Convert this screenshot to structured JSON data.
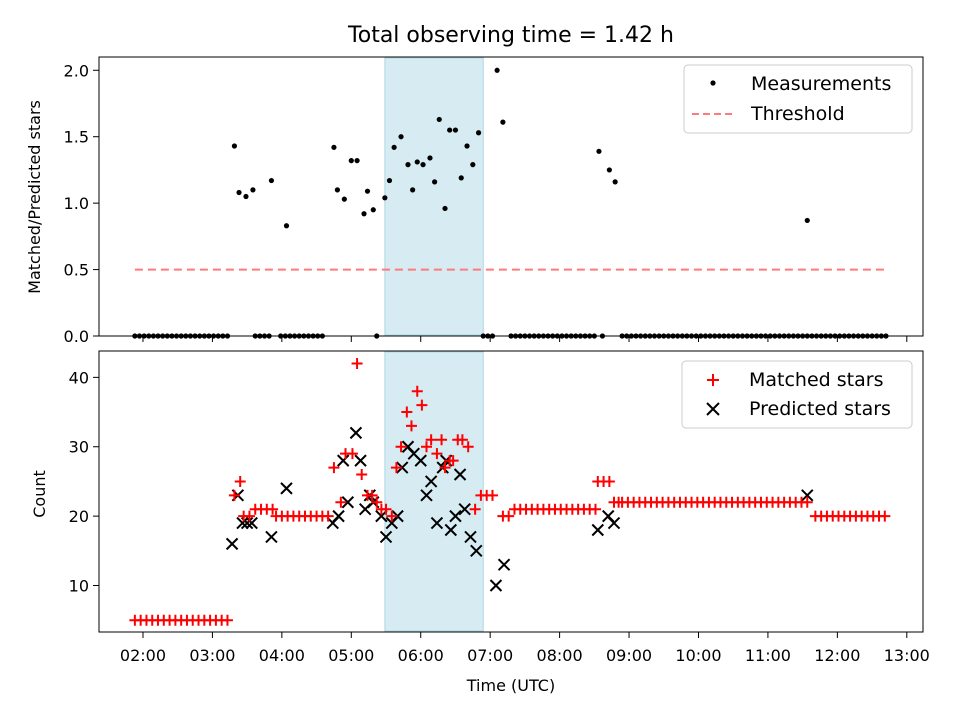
{
  "chart_data": [
    {
      "type": "scatter",
      "title": "Total observing time = 1.42 h",
      "ylabel": "Matched/Predicted stars",
      "xlabel": "",
      "xlim": [
        "01:22",
        "13:14"
      ],
      "ylim": [
        0,
        2.1
      ],
      "yticks": [
        "0.0",
        "0.5",
        "1.0",
        "1.5",
        "2.0"
      ],
      "grid": false,
      "legend_position": "top-right",
      "shaded_interval": [
        "05:29",
        "06:54"
      ],
      "series": [
        {
          "name": "Measurements",
          "color": "#000000",
          "marker": "dot",
          "points": [
            [
              "03:19",
              1.43
            ],
            [
              "03:23",
              1.08
            ],
            [
              "03:29",
              1.05
            ],
            [
              "03:35",
              1.1
            ],
            [
              "03:51",
              1.17
            ],
            [
              "04:04",
              0.83
            ],
            [
              "04:45",
              1.42
            ],
            [
              "04:48",
              1.1
            ],
            [
              "04:54",
              1.03
            ],
            [
              "05:00",
              1.32
            ],
            [
              "05:05",
              1.32
            ],
            [
              "05:11",
              0.92
            ],
            [
              "05:14",
              1.09
            ],
            [
              "05:19",
              0.95
            ],
            [
              "05:29",
              1.04
            ],
            [
              "05:33",
              1.17
            ],
            [
              "05:37",
              1.42
            ],
            [
              "05:43",
              1.5
            ],
            [
              "05:49",
              1.29
            ],
            [
              "05:53",
              1.1
            ],
            [
              "05:57",
              1.31
            ],
            [
              "06:02",
              1.29
            ],
            [
              "06:08",
              1.34
            ],
            [
              "06:12",
              1.16
            ],
            [
              "06:16",
              1.63
            ],
            [
              "06:21",
              0.96
            ],
            [
              "06:25",
              1.55
            ],
            [
              "06:30",
              1.55
            ],
            [
              "06:35",
              1.19
            ],
            [
              "06:40",
              1.43
            ],
            [
              "06:45",
              1.29
            ],
            [
              "06:50",
              1.53
            ],
            [
              "07:06",
              2.0
            ],
            [
              "07:11",
              1.61
            ],
            [
              "08:34",
              1.39
            ],
            [
              "08:43",
              1.25
            ],
            [
              "08:48",
              1.16
            ],
            [
              "11:34",
              0.87
            ]
          ],
          "zero_runs": [
            [
              "01:53",
              "03:13"
            ],
            [
              "03:37",
              "03:52"
            ],
            [
              "03:59",
              "04:38"
            ],
            [
              "05:22",
              "05:24"
            ],
            [
              "06:54",
              "07:02"
            ],
            [
              "07:18",
              "08:33"
            ],
            [
              "08:37",
              "08:39"
            ],
            [
              "08:54",
              "12:43"
            ]
          ]
        },
        {
          "name": "Threshold",
          "color": "#ff7a7a",
          "style": "dashed",
          "x": [
            "01:53",
            "12:43"
          ],
          "y": [
            0.5,
            0.5
          ]
        }
      ]
    },
    {
      "type": "scatter",
      "title": "",
      "ylabel": "Count",
      "xlabel": "Time (UTC)",
      "xlim": [
        "01:22",
        "13:14"
      ],
      "ylim": [
        3.3,
        43.8
      ],
      "yticks": [
        "10",
        "20",
        "30",
        "40"
      ],
      "xticks": [
        "02:00",
        "03:00",
        "04:00",
        "05:00",
        "06:00",
        "07:00",
        "08:00",
        "09:00",
        "10:00",
        "11:00",
        "12:00",
        "13:00"
      ],
      "grid": false,
      "legend_position": "top-right",
      "shaded_interval": [
        "05:29",
        "06:54"
      ],
      "series": [
        {
          "name": "Matched stars",
          "color": "#ff0000",
          "marker": "plus",
          "runs": [
            {
              "from": "01:53",
              "to": "03:13",
              "step": 5,
              "y": 5
            },
            {
              "from": "03:27",
              "to": "03:32",
              "step": 5,
              "y": 20
            },
            {
              "from": "03:37",
              "to": "03:52",
              "step": 5,
              "y": 21
            },
            {
              "from": "03:55",
              "to": "04:40",
              "step": 5,
              "y": 20
            },
            {
              "from": "07:11",
              "to": "07:16",
              "step": 5,
              "y": 20
            },
            {
              "from": "07:21",
              "to": "08:31",
              "step": 5,
              "y": 21
            },
            {
              "from": "08:54",
              "to": "11:29",
              "step": 5,
              "y": 22
            },
            {
              "from": "11:41",
              "to": "12:41",
              "step": 5,
              "y": 20
            }
          ],
          "points": [
            [
              "03:19",
              23
            ],
            [
              "03:24",
              25
            ],
            [
              "04:45",
              27
            ],
            [
              "04:51",
              22
            ],
            [
              "04:55",
              29
            ],
            [
              "05:01",
              29
            ],
            [
              "05:05",
              42
            ],
            [
              "05:09",
              26
            ],
            [
              "05:14",
              23
            ],
            [
              "05:18",
              23
            ],
            [
              "05:22",
              22
            ],
            [
              "05:26",
              21
            ],
            [
              "05:30",
              21
            ],
            [
              "05:35",
              20
            ],
            [
              "05:39",
              27
            ],
            [
              "05:43",
              30
            ],
            [
              "05:48",
              35
            ],
            [
              "05:52",
              33
            ],
            [
              "05:57",
              38
            ],
            [
              "06:01",
              36
            ],
            [
              "06:05",
              30
            ],
            [
              "06:09",
              31
            ],
            [
              "06:14",
              29
            ],
            [
              "06:18",
              31
            ],
            [
              "06:21",
              27
            ],
            [
              "06:25",
              28
            ],
            [
              "06:28",
              28
            ],
            [
              "06:32",
              31
            ],
            [
              "06:36",
              31
            ],
            [
              "06:41",
              30
            ],
            [
              "06:47",
              21
            ],
            [
              "06:52",
              23
            ],
            [
              "06:57",
              23
            ],
            [
              "07:02",
              23
            ],
            [
              "08:33",
              25
            ],
            [
              "08:38",
              25
            ],
            [
              "08:43",
              25
            ],
            [
              "08:47",
              22
            ],
            [
              "08:51",
              22
            ],
            [
              "11:34",
              22
            ]
          ]
        },
        {
          "name": "Predicted stars",
          "color": "#000000",
          "marker": "x",
          "points": [
            [
              "03:17",
              16
            ],
            [
              "03:22",
              23
            ],
            [
              "03:26",
              19
            ],
            [
              "03:30",
              19
            ],
            [
              "03:34",
              19
            ],
            [
              "03:51",
              17
            ],
            [
              "04:04",
              24
            ],
            [
              "04:44",
              19
            ],
            [
              "04:49",
              20
            ],
            [
              "04:53",
              28
            ],
            [
              "04:57",
              22
            ],
            [
              "05:04",
              32
            ],
            [
              "05:08",
              28
            ],
            [
              "05:12",
              21
            ],
            [
              "05:16",
              23
            ],
            [
              "05:19",
              22
            ],
            [
              "05:26",
              20
            ],
            [
              "05:30",
              17
            ],
            [
              "05:35",
              19
            ],
            [
              "05:40",
              20
            ],
            [
              "05:44",
              27
            ],
            [
              "05:49",
              30
            ],
            [
              "05:54",
              29
            ],
            [
              "06:00",
              28
            ],
            [
              "06:05",
              23
            ],
            [
              "06:09",
              25
            ],
            [
              "06:14",
              19
            ],
            [
              "06:19",
              27
            ],
            [
              "06:22",
              28
            ],
            [
              "06:26",
              18
            ],
            [
              "06:30",
              20
            ],
            [
              "06:34",
              26
            ],
            [
              "06:38",
              21
            ],
            [
              "06:43",
              17
            ],
            [
              "06:48",
              15
            ],
            [
              "07:05",
              10
            ],
            [
              "07:12",
              13
            ],
            [
              "08:33",
              18
            ],
            [
              "08:42",
              20
            ],
            [
              "08:47",
              19
            ],
            [
              "11:34",
              23
            ]
          ]
        }
      ]
    }
  ]
}
